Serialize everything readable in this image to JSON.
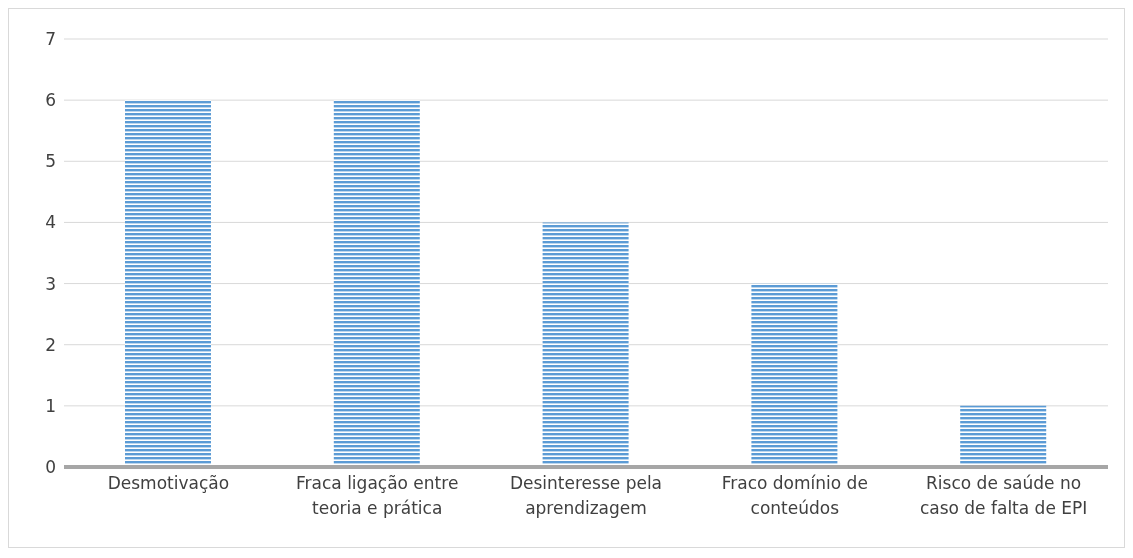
{
  "chart_data": {
    "type": "bar",
    "categories": [
      "Desmotivação",
      "Fraca ligação entre teoria e prática",
      "Desinteresse pela aprendizagem",
      "Fraco domínio de conteúdos",
      "Risco de saúde no caso de falta de EPI"
    ],
    "values": [
      6,
      6,
      4,
      3,
      1
    ],
    "color": "#5b9bd5",
    "ylim": [
      0,
      7
    ],
    "yticks": [
      0,
      1,
      2,
      3,
      4,
      5,
      6,
      7
    ],
    "grid": "y"
  }
}
